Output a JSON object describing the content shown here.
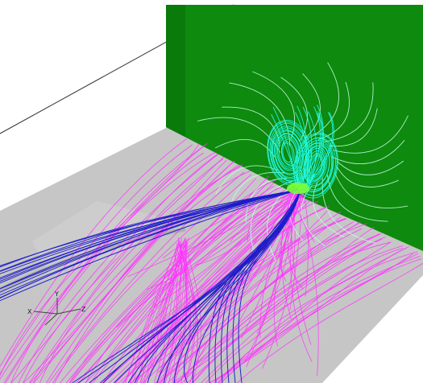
{
  "scene": {
    "background": "#ffffff",
    "wall_color": "#0e8a0e",
    "floor_color": "#c6c6c6",
    "streamline_colors": {
      "floor": "#ff33ff",
      "wake": "#1c1cc8",
      "vortex": "#22ffee",
      "wall": "#c8ffe6",
      "jet_core": "#7dff3a"
    }
  },
  "axes_triad": {
    "x_label": "X",
    "y_label": "Y",
    "z_label": "Z"
  }
}
